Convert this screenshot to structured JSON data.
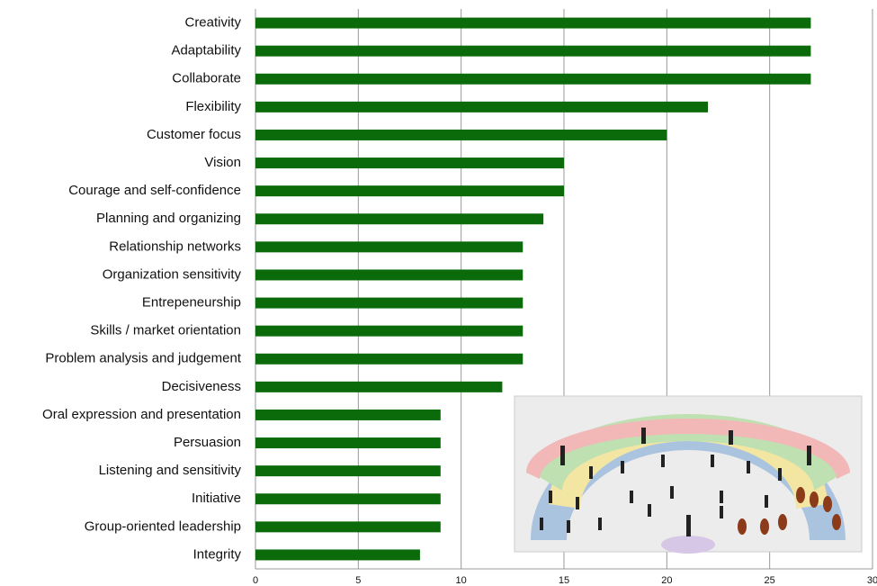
{
  "chart_data": {
    "type": "bar",
    "orientation": "horizontal",
    "categories": [
      "Creativity",
      "Adaptability",
      "Collaborate",
      "Flexibility",
      "Customer focus",
      "Vision",
      "Courage and self-confidence",
      "Planning and organizing",
      "Relationship networks",
      "Organization sensitivity",
      "Entrepeneurship",
      "Skills / market orientation",
      "Problem analysis and judgement",
      "Decisiveness",
      "Oral expression and presentation",
      "Persuasion",
      "Listening and sensitivity",
      "Initiative",
      "Group-oriented leadership",
      "Integrity"
    ],
    "values": [
      27,
      27,
      27,
      22,
      20,
      15,
      15,
      14,
      13,
      13,
      13,
      13,
      13,
      12,
      9,
      9,
      9,
      9,
      9,
      8
    ],
    "color": "#0b6b0b",
    "xlim": [
      0,
      30
    ],
    "xticks": [
      0,
      5,
      10,
      15,
      20,
      25,
      30
    ],
    "grid": true
  }
}
